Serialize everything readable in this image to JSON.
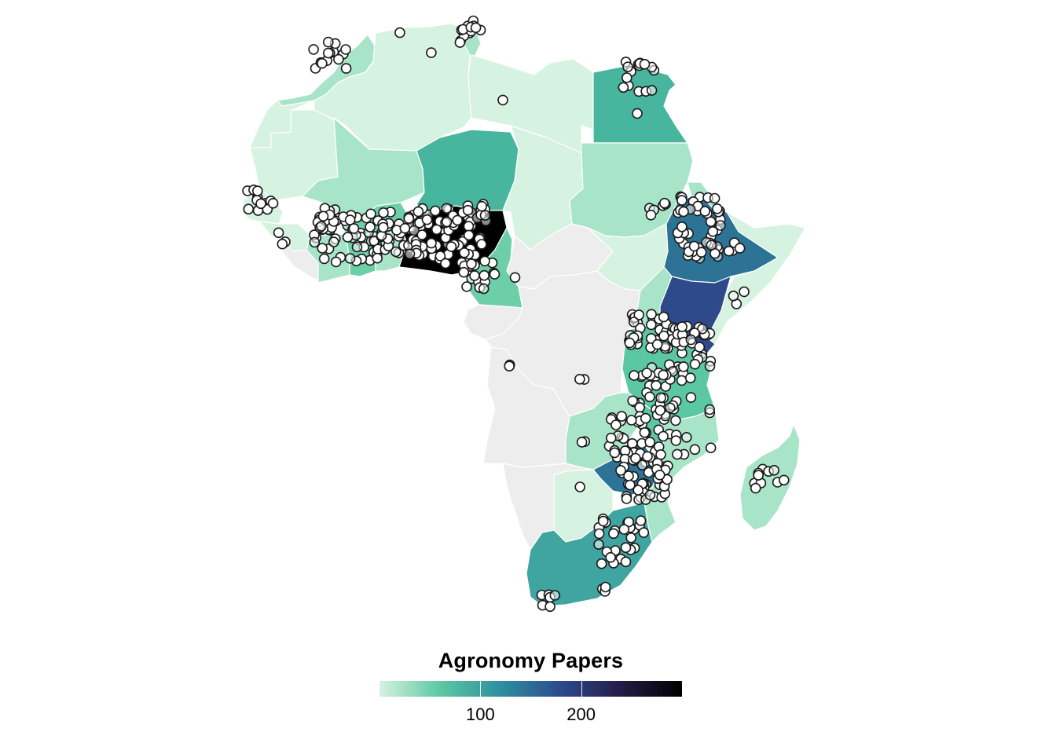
{
  "legend": {
    "title": "Agronomy Papers",
    "ticks": [
      {
        "value": 100,
        "label": "100"
      },
      {
        "value": 200,
        "label": "200"
      }
    ],
    "domain": [
      0,
      300
    ],
    "gradient": [
      "#d6f2e0",
      "#5cc8a3",
      "#2f8f9e",
      "#2d4a8c",
      "#241c45",
      "#000000"
    ]
  },
  "colors": {
    "no_data": "#ededed",
    "point_fill": "#ffffff",
    "point_stroke": "#1a1a1a",
    "border": "#ffffff"
  }
}
